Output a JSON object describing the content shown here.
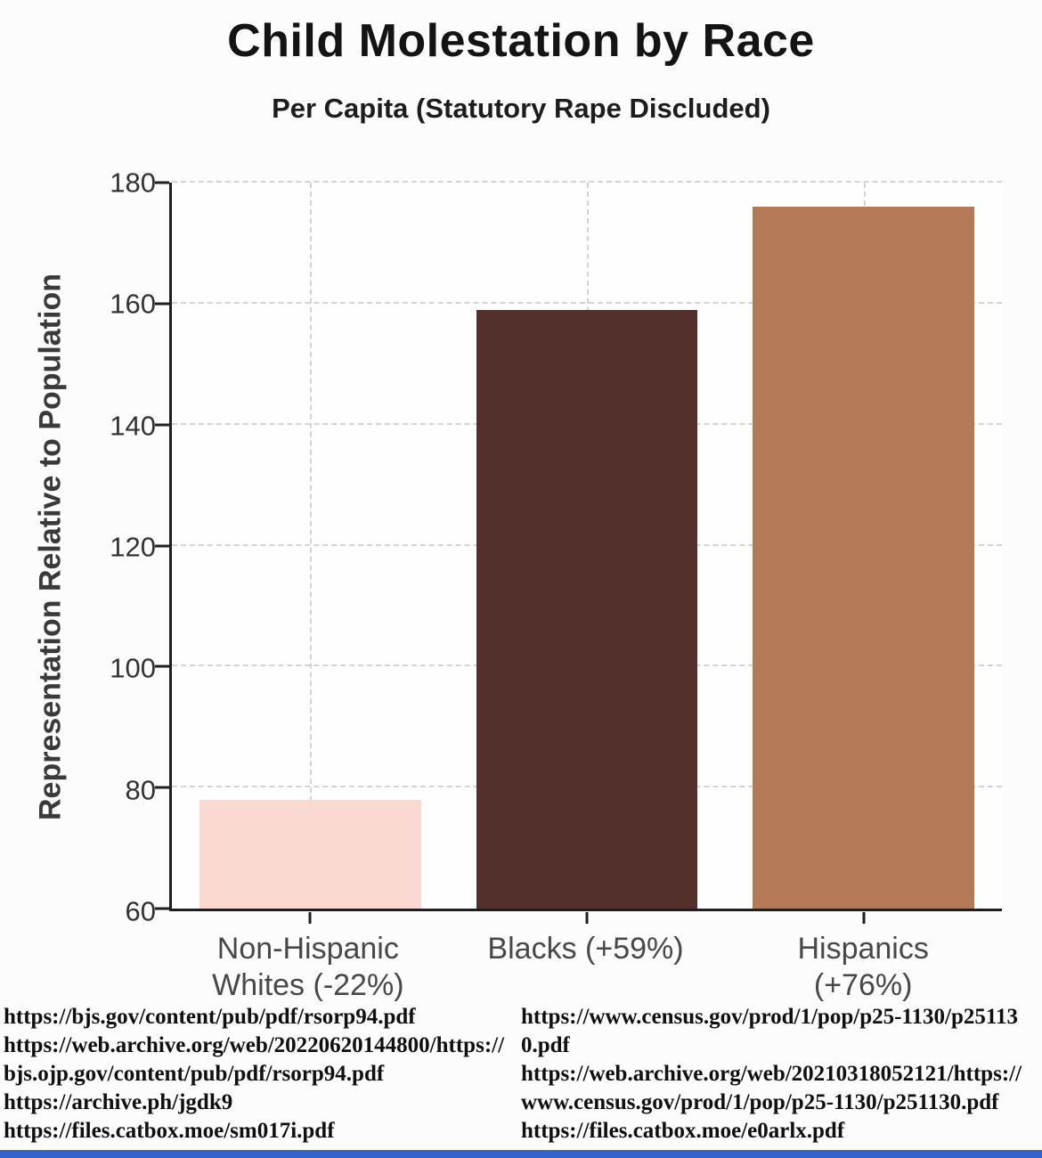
{
  "chart_data": {
    "type": "bar",
    "title": "Child Molestation by Race",
    "subtitle": "Per Capita (Statutory Rape Discluded)",
    "ylabel": "Representation Relative to Population",
    "categories": [
      "Non-Hispanic Whites (-22%)",
      "Blacks (+59%)",
      "Hispanics (+76%)"
    ],
    "category_lines": [
      [
        "Non-Hispanic",
        "Whites (-22%)"
      ],
      [
        "Blacks (+59%)"
      ],
      [
        "Hispanics",
        "(+76%)"
      ]
    ],
    "values": [
      78,
      159,
      176
    ],
    "bar_colors": [
      "#f9d9d2",
      "#53302c",
      "#b27a55"
    ],
    "ylim": [
      60,
      180
    ],
    "yticks": [
      60,
      80,
      100,
      120,
      140,
      160,
      180
    ],
    "grid": "dashed",
    "legend": "none"
  },
  "sources": {
    "left": [
      "https://bjs.gov/content/pub/pdf/rsorp94.pdf",
      "https://web.archive.org/web/20220620144800/https://bjs.ojp.gov/content/pub/pdf/rsorp94.pdf",
      "https://archive.ph/jgdk9",
      "https://files.catbox.moe/sm017i.pdf"
    ],
    "right": [
      "https://www.census.gov/prod/1/pop/p25-1130/p251130.pdf",
      "https://web.archive.org/web/20210318052121/https://www.census.gov/prod/1/pop/p25-1130/p251130.pdf",
      "https://files.catbox.moe/e0arlx.pdf"
    ]
  },
  "accent_blue": "#2a66cc"
}
